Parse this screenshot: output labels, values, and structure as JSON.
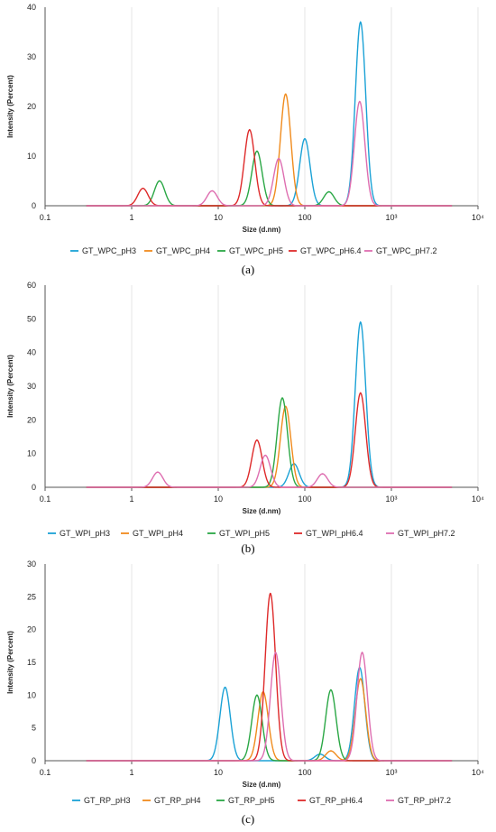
{
  "chart_data": [
    {
      "type": "line",
      "caption": "(a)",
      "xlabel": "Size (d.nm)",
      "ylabel": "Intensity (Percent)",
      "xscale": "log",
      "xlim": [
        0.1,
        10000
      ],
      "ylim": [
        0,
        40
      ],
      "xticks": [
        "0.1",
        "1",
        "10",
        "100",
        "10³",
        "10⁴"
      ],
      "yticks": [
        "0",
        "10",
        "20",
        "30",
        "40"
      ],
      "legend_position": "bottom",
      "colors": [
        "#1ba2d6",
        "#f08b1d",
        "#2aa745",
        "#de2a2a",
        "#de6eb0"
      ],
      "series": [
        {
          "name": "GT_WPC_pH3",
          "peaks": [
            {
              "x": 100,
              "y": 13.5
            },
            {
              "x": 440,
              "y": 37
            }
          ]
        },
        {
          "name": "GT_WPC_pH4",
          "peaks": [
            {
              "x": 60,
              "y": 22.5
            }
          ]
        },
        {
          "name": "GT_WPC_pH5",
          "peaks": [
            {
              "x": 2.1,
              "y": 5
            },
            {
              "x": 28,
              "y": 11
            },
            {
              "x": 190,
              "y": 2.8
            }
          ]
        },
        {
          "name": "GT_WPC_pH6.4",
          "peaks": [
            {
              "x": 1.35,
              "y": 3.5
            },
            {
              "x": 23,
              "y": 15.3
            }
          ]
        },
        {
          "name": "GT_WPC_pH7.2",
          "peaks": [
            {
              "x": 8.5,
              "y": 3
            },
            {
              "x": 50,
              "y": 9.5
            },
            {
              "x": 430,
              "y": 21
            }
          ]
        }
      ]
    },
    {
      "type": "line",
      "caption": "(b)",
      "xlabel": "Size (d.nm)",
      "ylabel": "Intensity (Percent)",
      "xscale": "log",
      "xlim": [
        0.1,
        10000
      ],
      "ylim": [
        0,
        60
      ],
      "xticks": [
        "0.1",
        "1",
        "10",
        "100",
        "10³",
        "10⁴"
      ],
      "yticks": [
        "0",
        "10",
        "20",
        "30",
        "40",
        "50",
        "60"
      ],
      "legend_position": "bottom",
      "colors": [
        "#1ba2d6",
        "#f08b1d",
        "#2aa745",
        "#de2a2a",
        "#de6eb0"
      ],
      "series": [
        {
          "name": "GT_WPI_pH3",
          "peaks": [
            {
              "x": 75,
              "y": 7
            },
            {
              "x": 440,
              "y": 49
            }
          ]
        },
        {
          "name": "GT_WPI_pH4",
          "peaks": [
            {
              "x": 60,
              "y": 24
            }
          ]
        },
        {
          "name": "GT_WPI_pH5",
          "peaks": [
            {
              "x": 55,
              "y": 26.5
            }
          ]
        },
        {
          "name": "GT_WPI_pH6.4",
          "peaks": [
            {
              "x": 28,
              "y": 14
            },
            {
              "x": 440,
              "y": 28
            }
          ]
        },
        {
          "name": "GT_WPI_pH7.2",
          "peaks": [
            {
              "x": 2,
              "y": 4.5
            },
            {
              "x": 35,
              "y": 9.5
            },
            {
              "x": 160,
              "y": 4
            }
          ]
        }
      ]
    },
    {
      "type": "line",
      "caption": "(c)",
      "xlabel": "Size (d.nm)",
      "ylabel": "Intensity (Percent)",
      "xscale": "log",
      "xlim": [
        0.1,
        10000
      ],
      "ylim": [
        0,
        30
      ],
      "xticks": [
        "0.1",
        "1",
        "10",
        "100",
        "10³",
        "10⁴"
      ],
      "yticks": [
        "0",
        "5",
        "10",
        "15",
        "20",
        "25",
        "30"
      ],
      "legend_position": "bottom",
      "colors": [
        "#1ba2d6",
        "#f08b1d",
        "#2aa745",
        "#de2a2a",
        "#de6eb0"
      ],
      "series": [
        {
          "name": "GT_RP_pH3",
          "peaks": [
            {
              "x": 12,
              "y": 11.2
            },
            {
              "x": 150,
              "y": 1
            },
            {
              "x": 430,
              "y": 14.2
            }
          ]
        },
        {
          "name": "GT_RP_pH4",
          "peaks": [
            {
              "x": 33,
              "y": 10.5
            },
            {
              "x": 200,
              "y": 1.5
            },
            {
              "x": 440,
              "y": 12.5
            }
          ]
        },
        {
          "name": "GT_RP_pH5",
          "peaks": [
            {
              "x": 28,
              "y": 10
            },
            {
              "x": 200,
              "y": 10.8
            }
          ]
        },
        {
          "name": "GT_RP_pH6.4",
          "peaks": [
            {
              "x": 40,
              "y": 25.5
            }
          ]
        },
        {
          "name": "GT_RP_pH7.2",
          "peaks": [
            {
              "x": 46,
              "y": 16.5
            },
            {
              "x": 460,
              "y": 16.5
            }
          ]
        }
      ]
    }
  ]
}
